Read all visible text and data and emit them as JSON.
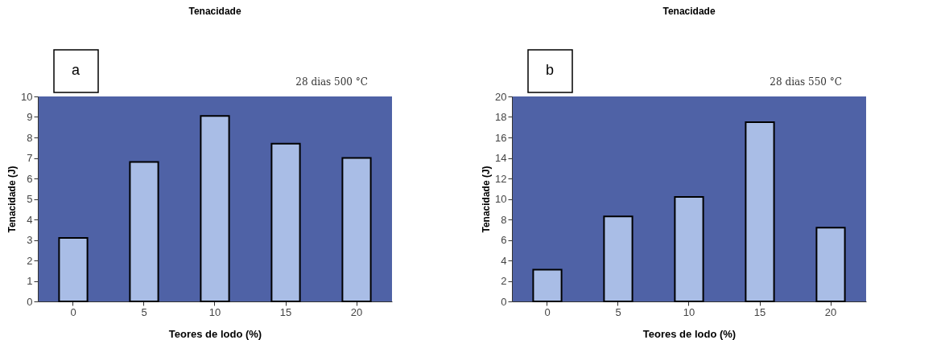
{
  "chart_data": [
    {
      "type": "bar",
      "title": "Tenacidade",
      "xlabel": "Teores de lodo (%)",
      "ylabel": "Tenacidade (J)",
      "categories": [
        "0",
        "5",
        "10",
        "15",
        "20"
      ],
      "values": [
        3.1,
        6.8,
        9.05,
        7.7,
        7.0
      ],
      "color": "#a9bde6",
      "ylim": [
        0,
        10
      ],
      "yticks": [
        0,
        1,
        2,
        3,
        4,
        5,
        6,
        7,
        8,
        9,
        10
      ],
      "grid": false,
      "annotations": [
        "a",
        "28 dias 500 °C"
      ]
    },
    {
      "type": "bar",
      "title": "Tenacidade",
      "xlabel": "Teores de lodo (%)",
      "ylabel": "Tenacidade (J)",
      "categories": [
        "0",
        "5",
        "10",
        "15",
        "20"
      ],
      "values": [
        3.1,
        8.3,
        10.2,
        17.5,
        7.2
      ],
      "color": "#a9bde6",
      "ylim": [
        0,
        20
      ],
      "yticks": [
        0,
        2,
        4,
        6,
        8,
        10,
        12,
        14,
        16,
        18,
        20
      ],
      "grid": false,
      "annotations": [
        "b",
        "28 dias 550 °C"
      ]
    }
  ]
}
